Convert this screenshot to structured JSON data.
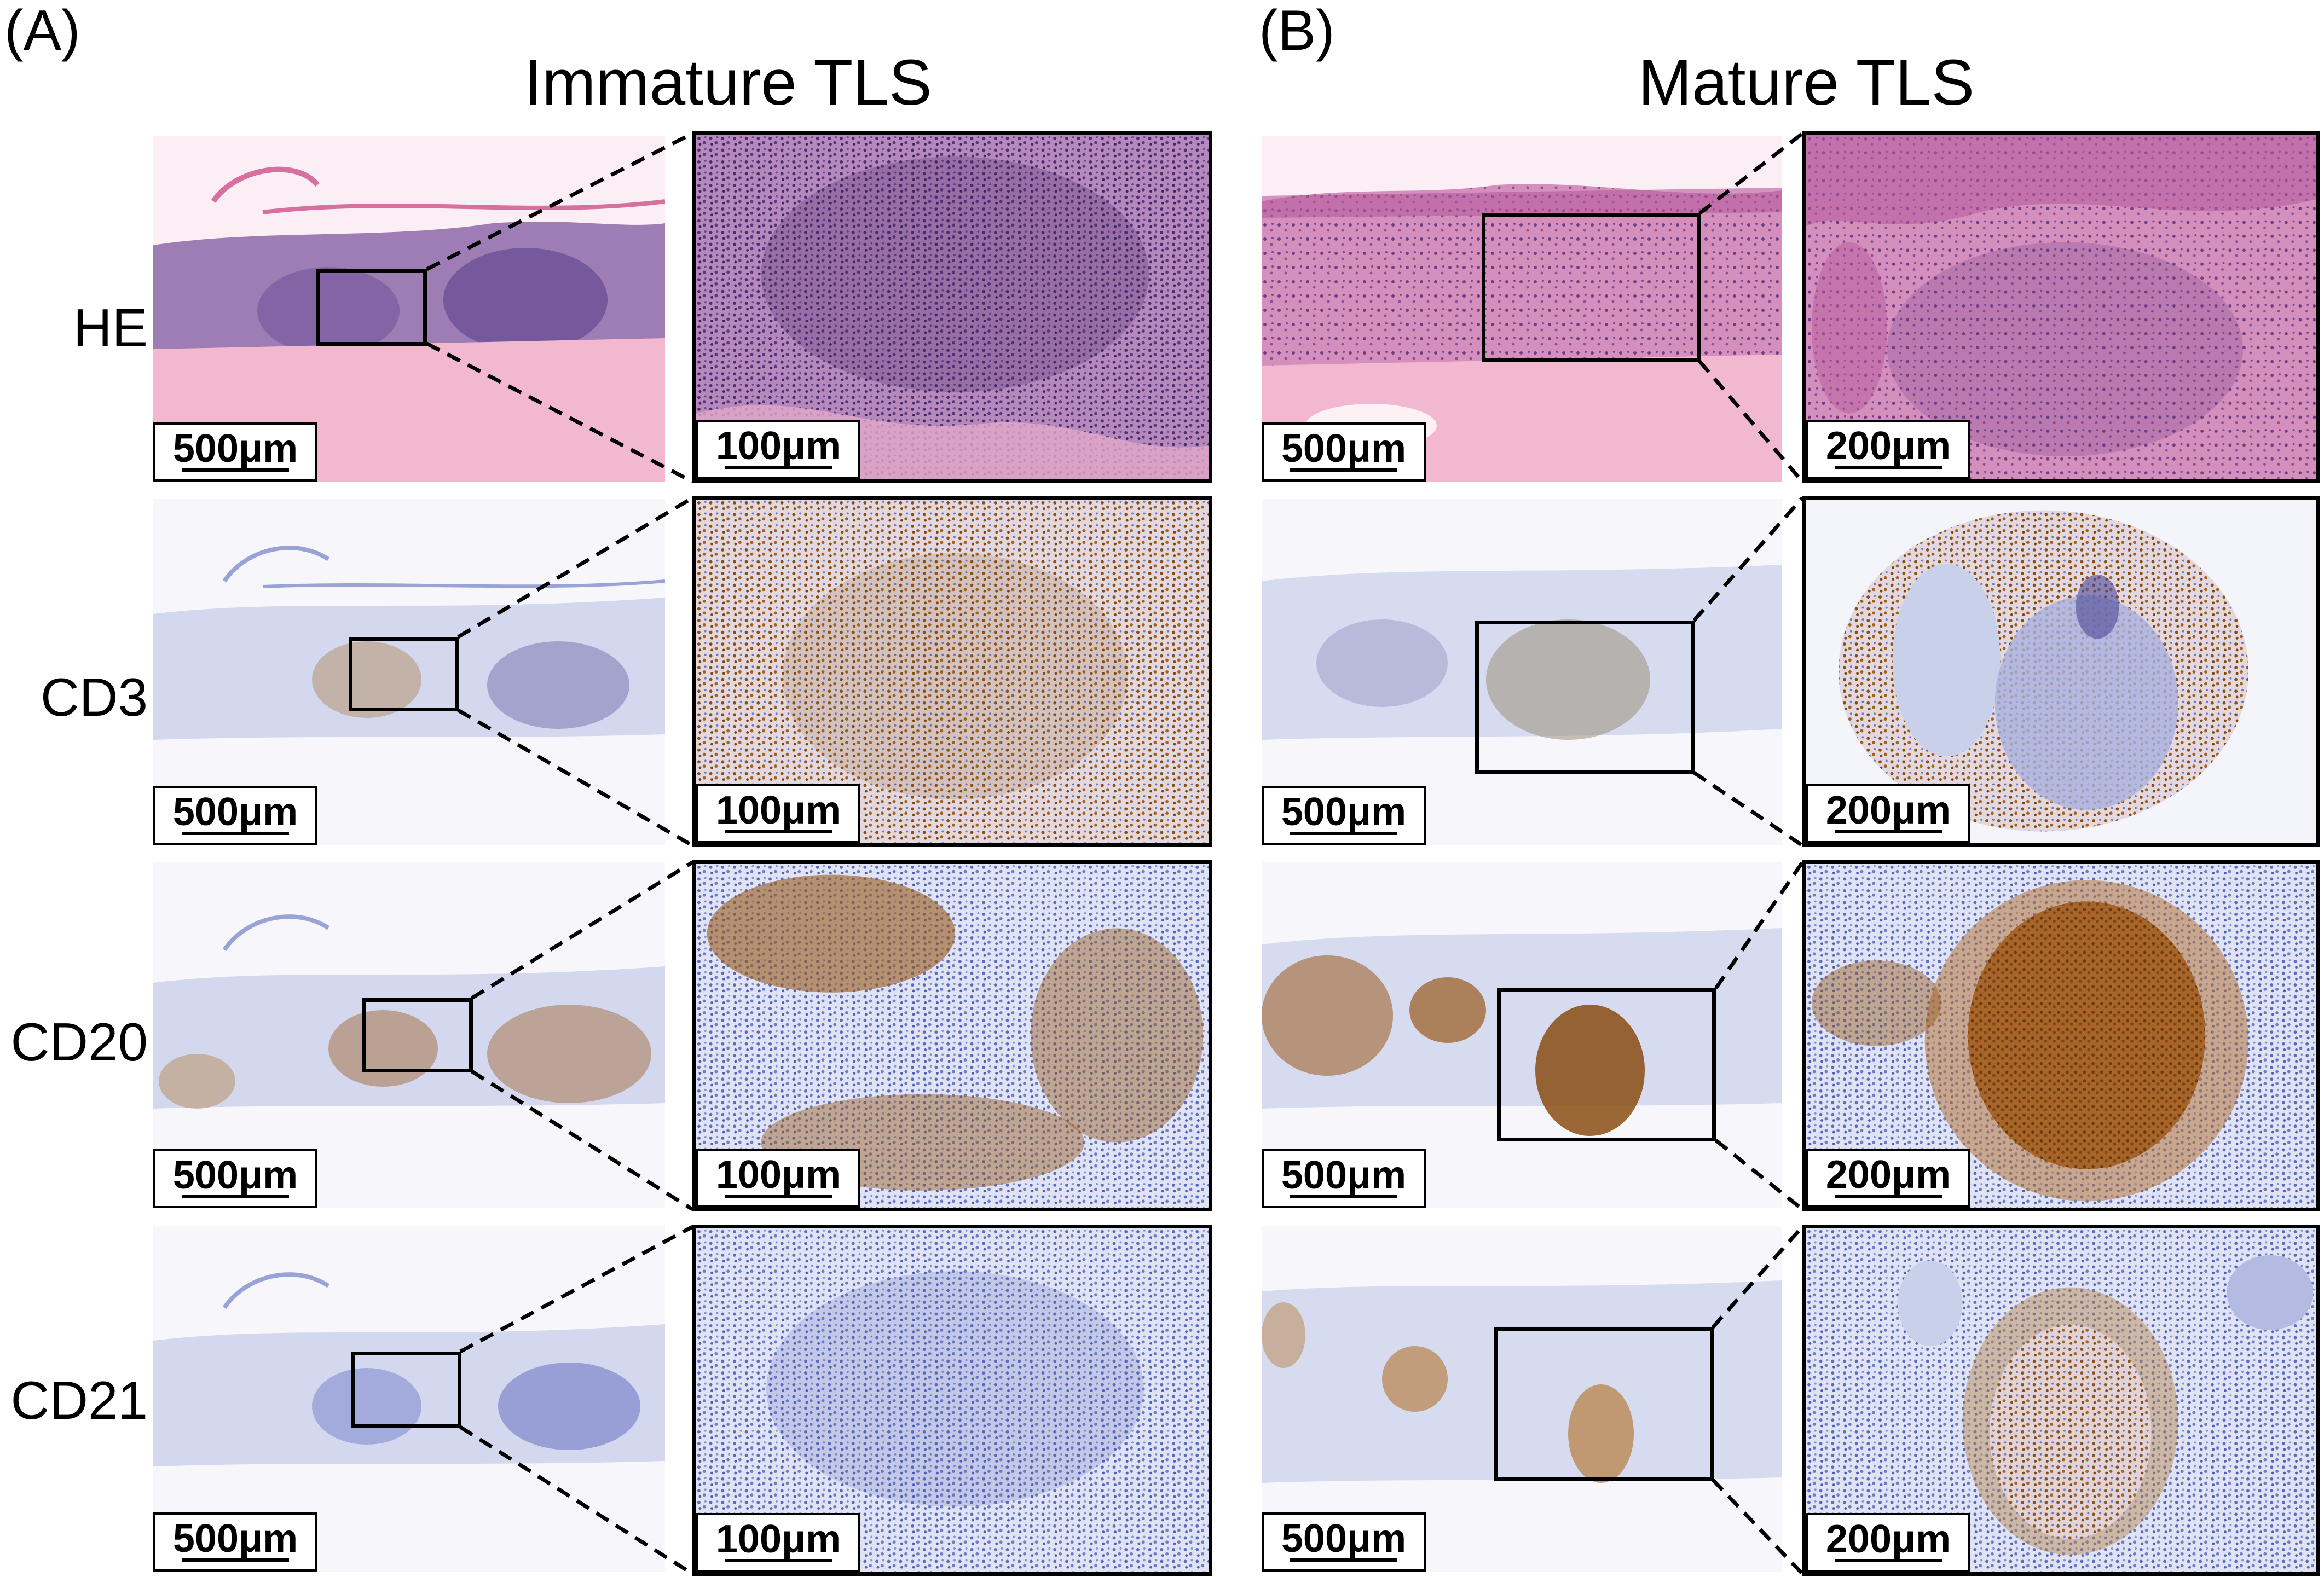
{
  "panels": [
    {
      "label": "(A)",
      "title": "Immature TLS"
    },
    {
      "label": "(B)",
      "title": "Mature TLS"
    }
  ],
  "rows": [
    {
      "label": "HE",
      "stain": "hematoxylin-eosin"
    },
    {
      "label": "CD3",
      "stain": "ihc-brown"
    },
    {
      "label": "CD20",
      "stain": "ihc-brown"
    },
    {
      "label": "CD21",
      "stain": "ihc-brown"
    }
  ],
  "scale_bars": {
    "overview": "500μm",
    "immature_zoom": "100μm",
    "mature_zoom": "200μm"
  },
  "colors": {
    "he_pink": "#e9a7c8",
    "he_purple": "#8a5c9e",
    "ihc_blue": "#a8b3dc",
    "ihc_brown": "#9a5a1c"
  }
}
